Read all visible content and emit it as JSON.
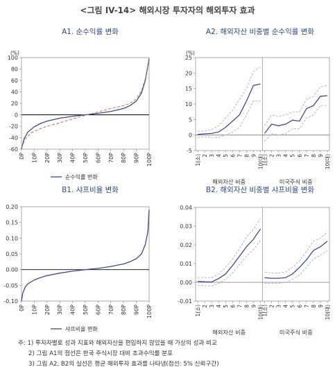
{
  "title": "<그림 IV-14> 해외시장 투자자의 해외투자 효과",
  "notes": [
    "주: 1) 투자자별로 성과 지표와 해외자산을 편입하지 않았을 때 가상의 성과 비교",
    "2) 그림 A1의 점선은 한국 주식시장 대비 초과수익률 분포",
    "3) 그림 A2, B2의 실선은 평균 해외투자 효과를 나타냄(점선: 5% 신뢰구간)"
  ],
  "colors": {
    "main_line": "#3d4b86",
    "dashed": "#c77b5c",
    "ci": "#b8b8b8",
    "zero": "#000000",
    "title_accent": "#2e4a86"
  },
  "chart_data": [
    {
      "id": "A1",
      "type": "line",
      "title": "A1. 순수익률 변화",
      "unit_label": "(%)",
      "x": [
        "0P",
        "10P",
        "20P",
        "30P",
        "40P",
        "50P",
        "60P",
        "70P",
        "80P",
        "90P",
        "100P"
      ],
      "ylim": [
        -60,
        100
      ],
      "yticks": [
        -60,
        -40,
        -20,
        0,
        20,
        40,
        60,
        80,
        100
      ],
      "legend": "순수익률 변화",
      "legend_position": "bottom-left",
      "series": [
        {
          "name": "순수익률 변화",
          "style": "solid",
          "values": [
            [
              0,
              -60
            ],
            [
              2,
              -42
            ],
            [
              5,
              -30
            ],
            [
              10,
              -21
            ],
            [
              15,
              -15
            ],
            [
              20,
              -11
            ],
            [
              30,
              -6
            ],
            [
              40,
              -2.5
            ],
            [
              50,
              0
            ],
            [
              60,
              2.5
            ],
            [
              70,
              6
            ],
            [
              80,
              11
            ],
            [
              85,
              16
            ],
            [
              90,
              24
            ],
            [
              94,
              38
            ],
            [
              97,
              60
            ],
            [
              100,
              98
            ]
          ]
        },
        {
          "style": "dashed",
          "values": [
            [
              0,
              -58
            ],
            [
              3,
              -42
            ],
            [
              8,
              -31
            ],
            [
              15,
              -24
            ],
            [
              20,
              -20
            ],
            [
              30,
              -14
            ],
            [
              40,
              -7
            ],
            [
              50,
              -1
            ],
            [
              60,
              5
            ],
            [
              70,
              11
            ],
            [
              80,
              16
            ],
            [
              85,
              20
            ],
            [
              90,
              28
            ],
            [
              94,
              42
            ],
            [
              97,
              63
            ],
            [
              100,
              100
            ]
          ]
        }
      ]
    },
    {
      "id": "A2",
      "type": "line",
      "title": "A2. 해외자산 비중별 순수익률 변화",
      "unit_label": "(%)",
      "ylim": [
        -5,
        25
      ],
      "yticks": [
        -5,
        0,
        5,
        10,
        15,
        20,
        25
      ],
      "x": [
        "1(소)",
        "2",
        "3",
        "4",
        "5",
        "6",
        "7",
        "8",
        "9",
        "10(대)"
      ],
      "groups": [
        "해외자산 비중",
        "미국주식 비중"
      ],
      "panels": [
        {
          "mean": [
            0.2,
            0.4,
            0.5,
            1.0,
            2.5,
            4.5,
            6.5,
            11.0,
            16.0,
            16.5
          ],
          "upper": [
            1.2,
            1.3,
            1.8,
            3.0,
            5.5,
            8.0,
            11.5,
            15.0,
            20.5,
            22.0
          ],
          "lower": [
            -0.8,
            -0.6,
            -0.8,
            -0.8,
            0.0,
            1.0,
            2.5,
            6.5,
            11.0,
            11.0
          ]
        },
        {
          "mean": [
            0.5,
            3.5,
            3.0,
            3.5,
            4.8,
            4.5,
            8.5,
            9.5,
            12.5,
            12.7
          ],
          "upper": [
            3.0,
            6.5,
            6.0,
            6.5,
            7.5,
            7.5,
            11.5,
            12.5,
            15.5,
            16.0
          ],
          "lower": [
            -2.0,
            0.5,
            0.0,
            0.5,
            2.0,
            2.0,
            5.5,
            6.5,
            9.5,
            9.5
          ]
        }
      ]
    },
    {
      "id": "B1",
      "type": "line",
      "title": "B1. 샤프비율 변화",
      "x": [
        "0P",
        "10P",
        "20P",
        "30P",
        "40P",
        "50P",
        "60P",
        "70P",
        "80P",
        "90P",
        "100P"
      ],
      "ylim": [
        -0.1,
        0.2
      ],
      "yticks": [
        "-0.10",
        "-0.05",
        "0.00",
        "0.05",
        "0.10",
        "0.15",
        "0.20"
      ],
      "legend": "샤프비율 변화",
      "legend_position": "bottom-left",
      "series": [
        {
          "name": "샤프비율 변화",
          "style": "solid",
          "values": [
            [
              0,
              -0.1
            ],
            [
              1,
              -0.075
            ],
            [
              3,
              -0.055
            ],
            [
              5,
              -0.045
            ],
            [
              10,
              -0.033
            ],
            [
              15,
              -0.025
            ],
            [
              20,
              -0.019
            ],
            [
              30,
              -0.011
            ],
            [
              40,
              -0.005
            ],
            [
              50,
              0.0
            ],
            [
              60,
              0.004
            ],
            [
              70,
              0.01
            ],
            [
              80,
              0.018
            ],
            [
              85,
              0.025
            ],
            [
              90,
              0.035
            ],
            [
              94,
              0.05
            ],
            [
              97,
              0.08
            ],
            [
              99,
              0.12
            ],
            [
              100,
              0.19
            ]
          ]
        }
      ]
    },
    {
      "id": "B2",
      "type": "line",
      "title": "B2. 해외자산 비중별 샤프비율 변화",
      "ylim": [
        -0.01,
        0.04
      ],
      "yticks": [
        "-0.01",
        "0.00",
        "0.01",
        "0.02",
        "0.03",
        "0.04"
      ],
      "x": [
        "1(소)",
        "2",
        "3",
        "4",
        "5",
        "6",
        "7",
        "8",
        "9",
        "10(대)"
      ],
      "groups": [
        "해외자산 비중",
        "미국주식 비중"
      ],
      "panels": [
        {
          "mean": [
            0.0005,
            0.0003,
            0.0002,
            0.002,
            0.0045,
            0.009,
            0.014,
            0.019,
            0.023,
            0.0285
          ],
          "upper": [
            0.0025,
            0.0025,
            0.0025,
            0.0045,
            0.008,
            0.0125,
            0.018,
            0.024,
            0.0285,
            0.034
          ],
          "lower": [
            -0.0015,
            -0.0018,
            -0.002,
            -0.0005,
            0.0015,
            0.005,
            0.0095,
            0.014,
            0.0175,
            0.0225
          ]
        },
        {
          "mean": [
            0.0025,
            0.0022,
            0.0022,
            0.0025,
            0.0045,
            0.008,
            0.012,
            0.017,
            0.019,
            0.022
          ],
          "upper": [
            0.0055,
            0.005,
            0.005,
            0.0055,
            0.008,
            0.0115,
            0.0165,
            0.022,
            0.0235,
            0.027
          ],
          "lower": [
            -0.0005,
            -0.0005,
            -0.0005,
            0.0,
            0.0015,
            0.004,
            0.008,
            0.0125,
            0.0145,
            0.017
          ]
        }
      ]
    }
  ]
}
